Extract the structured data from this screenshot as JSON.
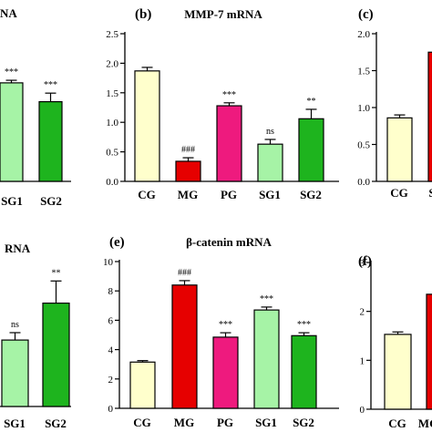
{
  "chart_data": [
    {
      "id": "a",
      "panel_label": "",
      "title": "NA",
      "type": "bar",
      "categories": [
        "SG1",
        "SG2"
      ],
      "values": [
        1.15,
        0.93
      ],
      "errors": [
        0.03,
        0.1
      ],
      "colors": [
        "#a6f3a6",
        "#1eb41e"
      ],
      "annotations": [
        "***",
        "***"
      ],
      "ylim": null,
      "yticks": [],
      "xlabel": "",
      "ylabel": ""
    },
    {
      "id": "b",
      "panel_label": "(b)",
      "title": "MMP-7 mRNA",
      "type": "bar",
      "categories": [
        "CG",
        "MG",
        "PG",
        "SG1",
        "SG2"
      ],
      "values": [
        1.87,
        0.34,
        1.28,
        0.63,
        1.06
      ],
      "errors": [
        0.06,
        0.06,
        0.05,
        0.08,
        0.16
      ],
      "colors": [
        "#ffffcc",
        "#e60000",
        "#ee1a7e",
        "#a6f3a6",
        "#1eb41e"
      ],
      "annotations": [
        "",
        "###",
        "***",
        "ns",
        "**"
      ],
      "ylim": [
        0,
        2.5
      ],
      "yticks": [
        "0.0",
        "0.5",
        "1.0",
        "1.5",
        "2.0",
        "2.5"
      ],
      "xlabel": "",
      "ylabel": ""
    },
    {
      "id": "c",
      "panel_label": "(c)",
      "title": "",
      "type": "bar",
      "categories": [
        "CG",
        "S"
      ],
      "values": [
        0.86,
        1.75
      ],
      "errors": [
        0.04,
        0
      ],
      "colors": [
        "#ffffcc",
        "#e60000"
      ],
      "annotations": [
        "",
        ""
      ],
      "ylim": [
        0,
        2.0
      ],
      "yticks": [
        "0.0",
        "0.5",
        "1.0",
        "1.5",
        "2.0"
      ],
      "xlabel": "",
      "ylabel": ""
    },
    {
      "id": "d",
      "panel_label": "",
      "title": "RNA",
      "type": "bar",
      "categories": [
        "SG1",
        "SG2"
      ],
      "values": [
        1.8,
        2.8
      ],
      "errors": [
        0.2,
        0.6
      ],
      "colors": [
        "#a6f3a6",
        "#1eb41e"
      ],
      "annotations": [
        "ns",
        "**"
      ],
      "ylim": null,
      "yticks": [],
      "xlabel": "",
      "ylabel": ""
    },
    {
      "id": "e",
      "panel_label": "(e)",
      "title": "β-catenin mRNA",
      "type": "bar",
      "categories": [
        "CG",
        "MG",
        "PG",
        "SG1",
        "SG2"
      ],
      "values": [
        3.15,
        8.4,
        4.85,
        6.7,
        4.95
      ],
      "errors": [
        0.1,
        0.3,
        0.3,
        0.2,
        0.2
      ],
      "colors": [
        "#ffffcc",
        "#e60000",
        "#ee1a7e",
        "#a6f3a6",
        "#1eb41e"
      ],
      "annotations": [
        "",
        "###",
        "***",
        "***",
        "***"
      ],
      "ylim": [
        0,
        10
      ],
      "yticks": [
        "0",
        "2",
        "4",
        "6",
        "8",
        "10"
      ],
      "xlabel": "",
      "ylabel": ""
    },
    {
      "id": "f",
      "panel_label": "(f)",
      "title": "",
      "type": "bar",
      "categories": [
        "CG",
        "MG"
      ],
      "values": [
        1.53,
        2.35
      ],
      "errors": [
        0.05,
        0
      ],
      "colors": [
        "#ffffcc",
        "#e60000"
      ],
      "annotations": [
        "",
        "#"
      ],
      "ylim": [
        0,
        3
      ],
      "yticks": [
        "0",
        "1",
        "2",
        "3"
      ],
      "xlabel": "",
      "ylabel": ""
    }
  ]
}
